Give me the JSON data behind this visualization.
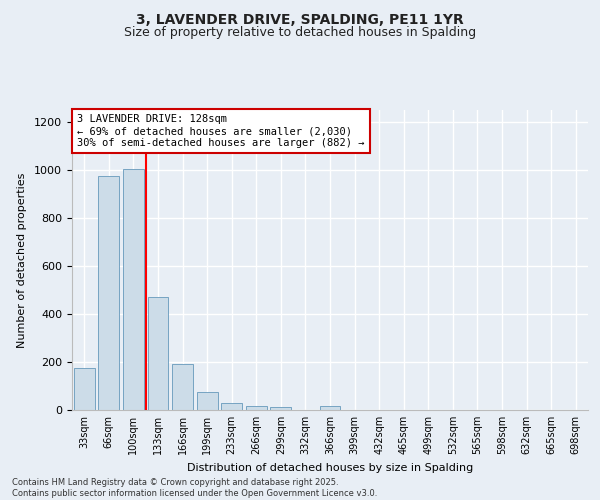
{
  "title1": "3, LAVENDER DRIVE, SPALDING, PE11 1YR",
  "title2": "Size of property relative to detached houses in Spalding",
  "xlabel": "Distribution of detached houses by size in Spalding",
  "ylabel": "Number of detached properties",
  "categories": [
    "33sqm",
    "66sqm",
    "100sqm",
    "133sqm",
    "166sqm",
    "199sqm",
    "233sqm",
    "266sqm",
    "299sqm",
    "332sqm",
    "366sqm",
    "399sqm",
    "432sqm",
    "465sqm",
    "499sqm",
    "532sqm",
    "565sqm",
    "598sqm",
    "632sqm",
    "665sqm",
    "698sqm"
  ],
  "values": [
    175,
    975,
    1005,
    470,
    190,
    75,
    28,
    18,
    12,
    0,
    15,
    0,
    0,
    0,
    0,
    0,
    0,
    0,
    0,
    0,
    0
  ],
  "bar_color": "#ccdce8",
  "bar_edge_color": "#6699bb",
  "red_line_x": 2.5,
  "annotation_title": "3 LAVENDER DRIVE: 128sqm",
  "annotation_line1": "← 69% of detached houses are smaller (2,030)",
  "annotation_line2": "30% of semi-detached houses are larger (882) →",
  "annotation_box_color": "#ffffff",
  "annotation_box_edge": "#cc0000",
  "footer1": "Contains HM Land Registry data © Crown copyright and database right 2025.",
  "footer2": "Contains public sector information licensed under the Open Government Licence v3.0.",
  "ylim": [
    0,
    1250
  ],
  "yticks": [
    0,
    200,
    400,
    600,
    800,
    1000,
    1200
  ],
  "background_color": "#e8eef5",
  "grid_color": "#ffffff",
  "title_fontsize": 10,
  "subtitle_fontsize": 9
}
